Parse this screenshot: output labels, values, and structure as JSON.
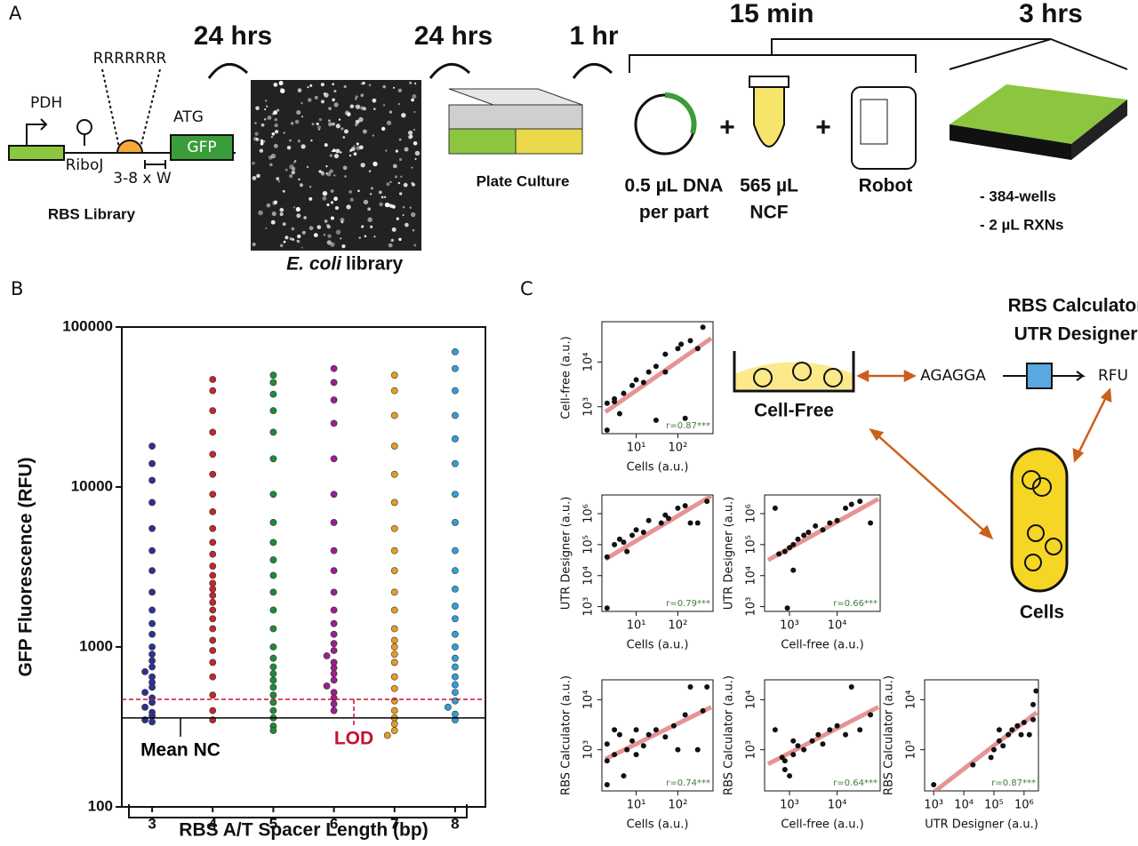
{
  "panel_a": {
    "label": "A",
    "promoter": "PDH",
    "spacer_seq": "RRRRRRR",
    "insulator": "RiboJ",
    "start": "ATG",
    "gene": "GFP",
    "spacer": "3-8 x W",
    "library": "RBS Library",
    "time_1": "24 hrs",
    "microscopy_species": "E. coli",
    "microscopy_label": "library",
    "time_2": "24 hrs",
    "plate": "Plate Culture",
    "time_3": "1 hr",
    "time_4": "15 min",
    "time_5": "3 hrs",
    "dna_1": "0.5 µL DNA",
    "dna_2": "per part",
    "ncf_1": "565 µL",
    "ncf_2": "NCF",
    "robot": "Robot",
    "wells_1": "- 384-wells",
    "wells_2": "- 2 µL RXNs"
  },
  "panel_c": {
    "label": "C",
    "cell_free": "Cell-Free",
    "cells": "Cells",
    "sequence": "AGAGGA",
    "output": "RFU",
    "tool_1": "RBS Calculator",
    "tool_2": "UTR Designer"
  },
  "chart_data": [
    {
      "type": "beeswarm",
      "panel_label": "B",
      "xlabel": "RBS A/T Spacer Length (bp)",
      "ylabel": "GFP Fluorescence (RFU)",
      "categories": [
        "3",
        "4",
        "5",
        "6",
        "7",
        "8"
      ],
      "colors": [
        "#2e3192",
        "#c1272d",
        "#1e8a3a",
        "#9b1f8f",
        "#e89b22",
        "#2f9fd8"
      ],
      "values": [
        [
          18000,
          14000,
          11000,
          8000,
          5500,
          4000,
          3000,
          2200,
          1700,
          1400,
          1200,
          1000,
          900,
          820,
          750,
          700,
          650,
          600,
          560,
          520,
          480,
          450,
          420,
          390,
          370,
          350,
          340
        ],
        [
          47000,
          40000,
          30000,
          22000,
          16000,
          12000,
          9000,
          7000,
          5500,
          4500,
          3800,
          3200,
          2800,
          2500,
          2300,
          2100,
          1900,
          1700,
          1500,
          1300,
          1100,
          950,
          800,
          650,
          500,
          400,
          350
        ],
        [
          50000,
          45000,
          38000,
          30000,
          22000,
          15000,
          9000,
          6000,
          4500,
          3500,
          2800,
          2200,
          1700,
          1300,
          1000,
          850,
          750,
          680,
          620,
          560,
          500,
          450,
          400,
          360,
          320,
          300
        ],
        [
          55000,
          45000,
          35000,
          25000,
          15000,
          9000,
          6000,
          4000,
          3000,
          2200,
          1700,
          1400,
          1200,
          1050,
          950,
          880,
          800,
          740,
          680,
          620,
          570,
          520,
          480,
          440,
          400
        ],
        [
          50000,
          40000,
          28000,
          18000,
          12000,
          8000,
          5500,
          4000,
          3000,
          2200,
          1700,
          1300,
          1100,
          1000,
          900,
          800,
          650,
          550,
          460,
          400,
          360,
          330,
          300,
          280
        ],
        [
          70000,
          55000,
          40000,
          28000,
          20000,
          14000,
          9000,
          6000,
          4000,
          3000,
          2300,
          1800,
          1500,
          1200,
          1000,
          850,
          750,
          650,
          580,
          520,
          460,
          420,
          380,
          350
        ]
      ],
      "log_y": true,
      "ylim": [
        100,
        100000
      ],
      "yticks": [
        100,
        1000,
        10000,
        100000
      ],
      "reference_lines": [
        {
          "label": "Mean NC",
          "value": 360,
          "color": "#000000"
        },
        {
          "label": "LOD",
          "value": 470,
          "color": "#c8102e"
        }
      ]
    },
    {
      "type": "scatter",
      "xlabel": "Cells (a.u.)",
      "ylabel": "Cell-free (a.u.)",
      "annotation": "r=0.87***",
      "color": "#111111",
      "fit_color": "#e07a7a",
      "log_x": true,
      "log_y": true,
      "xlim": [
        1.5,
        700
      ],
      "ylim": [
        250,
        80000
      ],
      "xticks": [
        {
          "value": 10,
          "label": "10¹"
        },
        {
          "value": 100,
          "label": "10²"
        }
      ],
      "yticks": [
        {
          "value": 1000,
          "label": "10³"
        },
        {
          "value": 10000,
          "label": "10⁴"
        }
      ],
      "x": [
        2,
        2,
        3,
        5,
        4,
        8,
        10,
        15,
        20,
        30,
        50,
        100,
        120,
        200,
        300,
        400,
        150,
        30,
        3,
        50
      ],
      "y": [
        300,
        1200,
        1300,
        2000,
        700,
        3000,
        4000,
        3500,
        6000,
        8000,
        6000,
        20000,
        25000,
        30000,
        20000,
        60000,
        550,
        500,
        1500,
        15000
      ]
    },
    {
      "type": "scatter",
      "xlabel": "Cells (a.u.)",
      "ylabel": "UTR Designer (a.u.)",
      "annotation": "r=0.79***",
      "color": "#111111",
      "fit_color": "#e07a7a",
      "log_x": true,
      "log_y": true,
      "xlim": [
        1.5,
        700
      ],
      "ylim": [
        700,
        4000000
      ],
      "xticks": [
        {
          "value": 10,
          "label": "10¹"
        },
        {
          "value": 100,
          "label": "10²"
        }
      ],
      "yticks": [
        {
          "value": 1000,
          "label": "10³"
        },
        {
          "value": 10000,
          "label": "10⁴"
        },
        {
          "value": 100000,
          "label": "10⁵"
        },
        {
          "value": 1000000,
          "label": "10⁶"
        }
      ],
      "x": [
        2,
        2,
        3,
        4,
        5,
        8,
        10,
        15,
        20,
        40,
        60,
        100,
        150,
        200,
        300,
        500,
        6,
        50
      ],
      "y": [
        900,
        40000,
        100000,
        150000,
        120000,
        200000,
        300000,
        250000,
        600000,
        500000,
        700000,
        1500000,
        1800000,
        500000,
        500000,
        2500000,
        60000,
        900000
      ]
    },
    {
      "type": "scatter",
      "xlabel": "Cell-free (a.u.)",
      "ylabel": "UTR Designer (a.u.)",
      "annotation": "r=0.66***",
      "color": "#111111",
      "fit_color": "#e07a7a",
      "log_x": true,
      "log_y": true,
      "xlim": [
        300,
        80000
      ],
      "ylim": [
        700,
        4000000
      ],
      "xticks": [
        {
          "value": 1000,
          "label": "10³"
        },
        {
          "value": 10000,
          "label": "10⁴"
        }
      ],
      "yticks": [
        {
          "value": 1000,
          "label": "10³"
        },
        {
          "value": 10000,
          "label": "10⁴"
        },
        {
          "value": 100000,
          "label": "10⁵"
        },
        {
          "value": 1000000,
          "label": "10⁶"
        }
      ],
      "x": [
        500,
        600,
        800,
        1000,
        1200,
        1500,
        2000,
        2500,
        3500,
        5000,
        7000,
        10000,
        15000,
        20000,
        30000,
        50000,
        1200,
        900
      ],
      "y": [
        1500000,
        50000,
        60000,
        80000,
        100000,
        150000,
        200000,
        250000,
        400000,
        300000,
        500000,
        600000,
        1500000,
        2000000,
        2500000,
        500000,
        15000,
        900
      ]
    },
    {
      "type": "scatter",
      "xlabel": "Cells (a.u.)",
      "ylabel": "RBS Calculator (a.u.)",
      "annotation": "r=0.74***",
      "color": "#111111",
      "fit_color": "#e07a7a",
      "log_x": true,
      "log_y": true,
      "xlim": [
        1.5,
        700
      ],
      "ylim": [
        150,
        25000
      ],
      "xticks": [
        {
          "value": 10,
          "label": "10¹"
        },
        {
          "value": 100,
          "label": "10²"
        }
      ],
      "yticks": [
        {
          "value": 1000,
          "label": "10³"
        },
        {
          "value": 10000,
          "label": "10⁴"
        }
      ],
      "x": [
        2,
        2,
        3,
        3,
        4,
        5,
        6,
        8,
        10,
        15,
        20,
        30,
        50,
        80,
        100,
        150,
        200,
        300,
        400,
        500,
        2,
        10
      ],
      "y": [
        200,
        600,
        800,
        2500,
        2000,
        300,
        1000,
        1500,
        2500,
        1200,
        2000,
        2500,
        1800,
        3000,
        1000,
        5000,
        18000,
        1000,
        6000,
        18000,
        1300,
        800
      ]
    },
    {
      "type": "scatter",
      "xlabel": "Cell-free (a.u.)",
      "ylabel": "RBS Calculator (a.u.)",
      "annotation": "r=0.64***",
      "color": "#111111",
      "fit_color": "#e07a7a",
      "log_x": true,
      "log_y": true,
      "xlim": [
        300,
        80000
      ],
      "ylim": [
        150,
        25000
      ],
      "xticks": [
        {
          "value": 1000,
          "label": "10³"
        },
        {
          "value": 10000,
          "label": "10⁴"
        }
      ],
      "yticks": [
        {
          "value": 1000,
          "label": "10³"
        },
        {
          "value": 10000,
          "label": "10⁴"
        }
      ],
      "x": [
        500,
        700,
        800,
        1000,
        1200,
        1500,
        2000,
        3000,
        4000,
        5000,
        7000,
        10000,
        15000,
        20000,
        30000,
        50000,
        800,
        1200
      ],
      "y": [
        2500,
        700,
        600,
        300,
        800,
        1200,
        1000,
        1500,
        2000,
        1300,
        2500,
        3000,
        2000,
        18000,
        2500,
        5000,
        400,
        1500
      ]
    },
    {
      "type": "scatter",
      "xlabel": "UTR Designer (a.u.)",
      "ylabel": "RBS Calculator (a.u.)",
      "annotation": "r=0.87***",
      "color": "#111111",
      "fit_color": "#e07a7a",
      "log_x": true,
      "log_y": true,
      "xlim": [
        500,
        3000000
      ],
      "ylim": [
        150,
        25000
      ],
      "xticks": [
        {
          "value": 1000,
          "label": "10³"
        },
        {
          "value": 10000,
          "label": "10⁴"
        },
        {
          "value": 100000,
          "label": "10⁵"
        },
        {
          "value": 1000000,
          "label": "10⁶"
        }
      ],
      "yticks": [
        {
          "value": 1000,
          "label": "10³"
        },
        {
          "value": 10000,
          "label": "10⁴"
        }
      ],
      "x": [
        1000,
        20000,
        80000,
        100000,
        150000,
        200000,
        300000,
        400000,
        600000,
        800000,
        1000000,
        1500000,
        2000000,
        2500000,
        150000,
        2000000
      ],
      "y": [
        200,
        500,
        700,
        1000,
        1500,
        1200,
        2000,
        2500,
        3000,
        2000,
        3500,
        2000,
        8000,
        15000,
        2500,
        4000
      ]
    }
  ]
}
